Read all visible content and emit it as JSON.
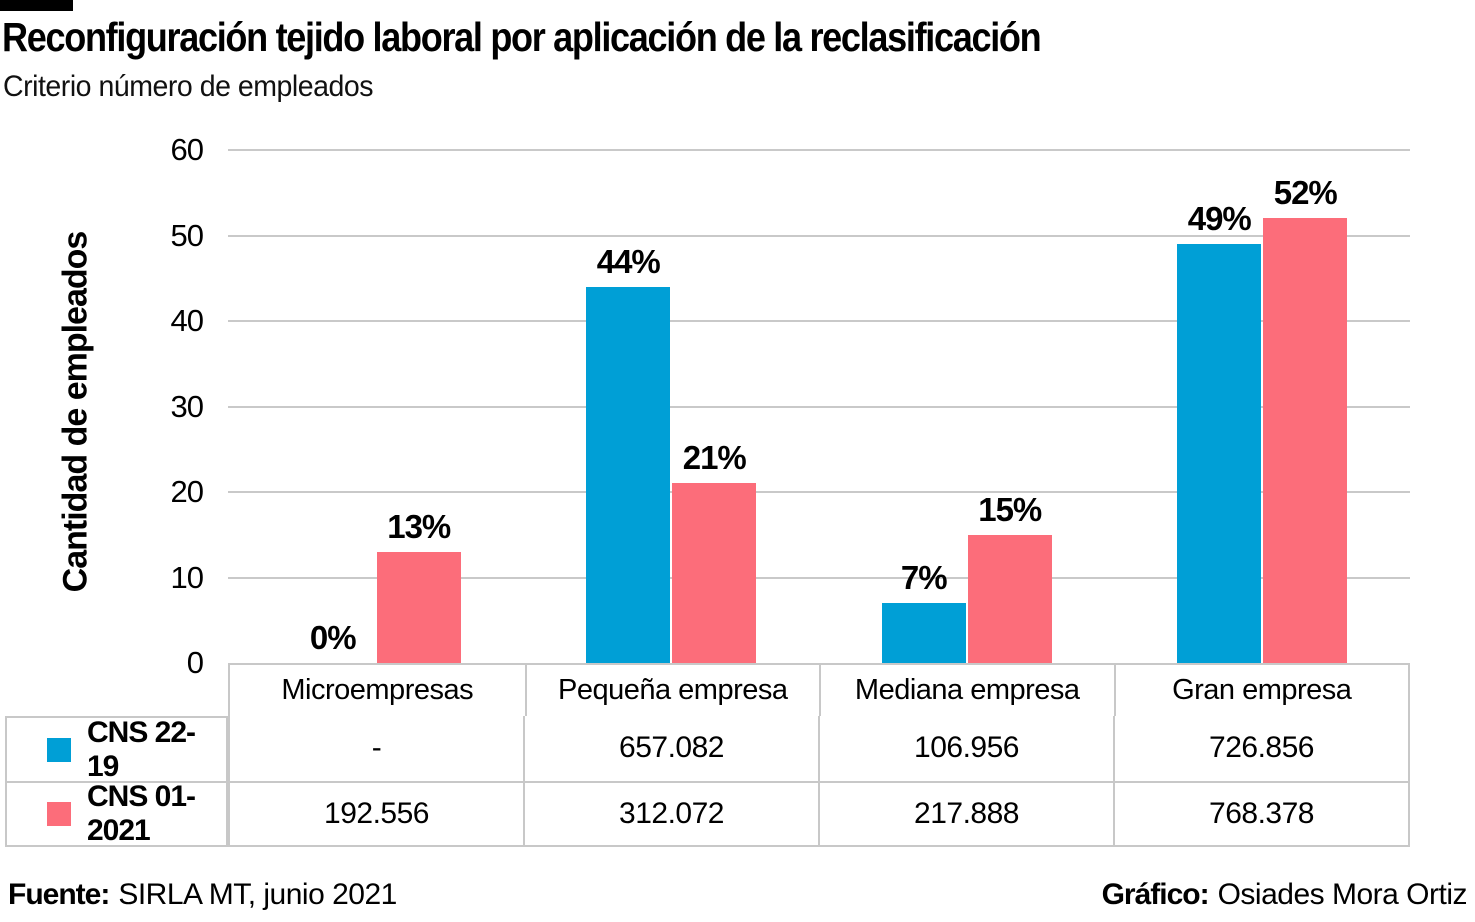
{
  "header": {
    "title": "Reconfiguración tejido laboral por aplicación de la reclasificación",
    "subtitle": "Criterio número de empleados"
  },
  "chart_data": {
    "type": "bar",
    "title": "Reconfiguración tejido laboral por aplicación de la reclasificación",
    "subtitle": "Criterio número de empleados",
    "ylabel": "Cantidad de empleados",
    "xlabel": "",
    "ylim": [
      0,
      60
    ],
    "yticks": [
      0,
      10,
      20,
      30,
      40,
      50,
      60
    ],
    "grid": true,
    "legend_position": "table-left",
    "categories": [
      "Microempresas",
      "Pequeña empresa",
      "Mediana empresa",
      "Gran empresa"
    ],
    "series": [
      {
        "name": "CNS 22-19",
        "color": "#009fd6",
        "values": [
          0,
          44,
          7,
          49
        ],
        "labels": [
          "0%",
          "44%",
          "7%",
          "49%"
        ],
        "table_values": [
          "-",
          "657.082",
          "106.956",
          "726.856"
        ]
      },
      {
        "name": "CNS 01-2021",
        "color": "#fc6d7a",
        "values": [
          13,
          21,
          15,
          52
        ],
        "labels": [
          "13%",
          "21%",
          "15%",
          "52%"
        ],
        "table_values": [
          "192.556",
          "312.072",
          "217.888",
          "768.378"
        ]
      }
    ]
  },
  "table": {
    "headers": [
      "Microempresas",
      "Pequeña empresa",
      "Mediana empresa",
      "Gran empresa"
    ],
    "rows": [
      {
        "legend": "CNS 22-19",
        "color": "#009fd6",
        "cells": [
          "-",
          "657.082",
          "106.956",
          "726.856"
        ]
      },
      {
        "legend": "CNS 01-2021",
        "color": "#fc6d7a",
        "cells": [
          "192.556",
          "312.072",
          "217.888",
          "768.378"
        ]
      }
    ]
  },
  "footer": {
    "source_label": "Fuente:",
    "source_text": "SIRLA MT, junio 2021",
    "credit_label": "Gráfico:",
    "credit_text": "Osiades Mora Ortiz"
  },
  "colors": {
    "series_blue": "#009fd6",
    "series_pink": "#fc6d7a",
    "gridline": "#c9c9c9",
    "table_border": "#c8c8c8",
    "accent_bar": "#000000"
  }
}
